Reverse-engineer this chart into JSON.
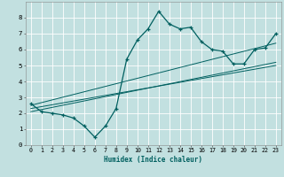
{
  "xlabel": "Humidex (Indice chaleur)",
  "xlim": [
    -0.5,
    23.5
  ],
  "ylim": [
    0,
    9
  ],
  "xticks": [
    0,
    1,
    2,
    3,
    4,
    5,
    6,
    7,
    8,
    9,
    10,
    11,
    12,
    13,
    14,
    15,
    16,
    17,
    18,
    19,
    20,
    21,
    22,
    23
  ],
  "yticks": [
    0,
    1,
    2,
    3,
    4,
    5,
    6,
    7,
    8
  ],
  "bg_color": "#c2e0e0",
  "grid_color": "#ffffff",
  "line_color": "#006060",
  "main_x": [
    0,
    1,
    2,
    3,
    4,
    5,
    6,
    7,
    8,
    9,
    10,
    11,
    12,
    13,
    14,
    15,
    16,
    17,
    18,
    19,
    20,
    21,
    22,
    23
  ],
  "main_y": [
    2.6,
    2.1,
    2.0,
    1.9,
    1.7,
    1.2,
    0.5,
    1.2,
    2.3,
    5.4,
    6.6,
    7.3,
    8.4,
    7.6,
    7.3,
    7.4,
    6.5,
    6.0,
    5.9,
    5.1,
    5.1,
    6.0,
    6.1,
    7.0
  ],
  "reg_lines": [
    {
      "x": [
        0,
        23
      ],
      "y": [
        2.5,
        6.4
      ]
    },
    {
      "x": [
        0,
        23
      ],
      "y": [
        2.1,
        5.2
      ]
    },
    {
      "x": [
        0,
        23
      ],
      "y": [
        2.3,
        5.0
      ]
    }
  ],
  "xlabel_fontsize": 5.5,
  "tick_fontsize": 4.8
}
